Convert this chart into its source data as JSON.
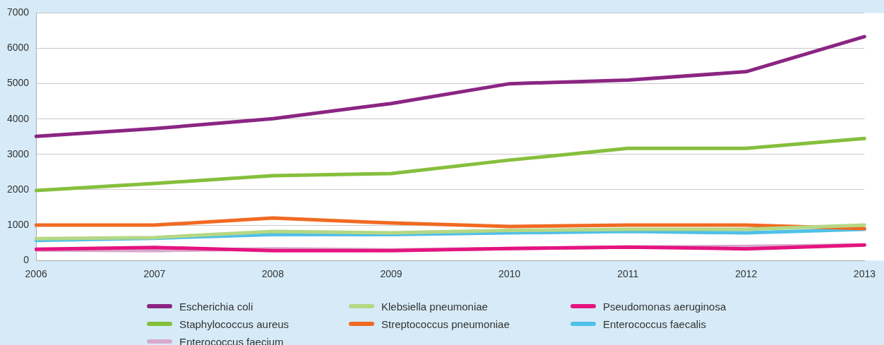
{
  "chart_data": {
    "type": "line",
    "categories": [
      "2006",
      "2007",
      "2008",
      "2009",
      "2010",
      "2011",
      "2012",
      "2013"
    ],
    "series": [
      {
        "name": "Escherichia coli",
        "color": "#8b2583",
        "values": [
          3510,
          3730,
          4010,
          4440,
          5000,
          5100,
          5340,
          6330
        ]
      },
      {
        "name": "Klebsiella pneumoniae",
        "color": "#b5d884",
        "values": [
          620,
          650,
          820,
          780,
          850,
          880,
          880,
          1000
        ]
      },
      {
        "name": "Pseudomonas aeruginosa",
        "color": "#e5147f",
        "values": [
          320,
          370,
          280,
          280,
          340,
          380,
          330,
          440
        ]
      },
      {
        "name": "Staphylococcus aureus",
        "color": "#86bf3c",
        "values": [
          1980,
          2180,
          2400,
          2460,
          2840,
          3170,
          3170,
          3450
        ]
      },
      {
        "name": "Streptococcus pneumoniae",
        "color": "#f06a22",
        "values": [
          1000,
          1000,
          1200,
          1060,
          960,
          1000,
          1000,
          900
        ]
      },
      {
        "name": "Enterococcus faecalis",
        "color": "#50c0e8",
        "values": [
          570,
          630,
          730,
          730,
          780,
          820,
          780,
          880
        ]
      },
      {
        "name": "Enterococcus faecium",
        "color": "#d8a9cd",
        "values": [
          300,
          280,
          330,
          300,
          340,
          380,
          400,
          440
        ]
      }
    ],
    "ylim": [
      0,
      7000
    ],
    "yticks": [
      0,
      1000,
      2000,
      3000,
      4000,
      5000,
      6000,
      7000
    ],
    "grid": "y",
    "legend": "bottom",
    "marker": "none",
    "line_style": "solid"
  }
}
